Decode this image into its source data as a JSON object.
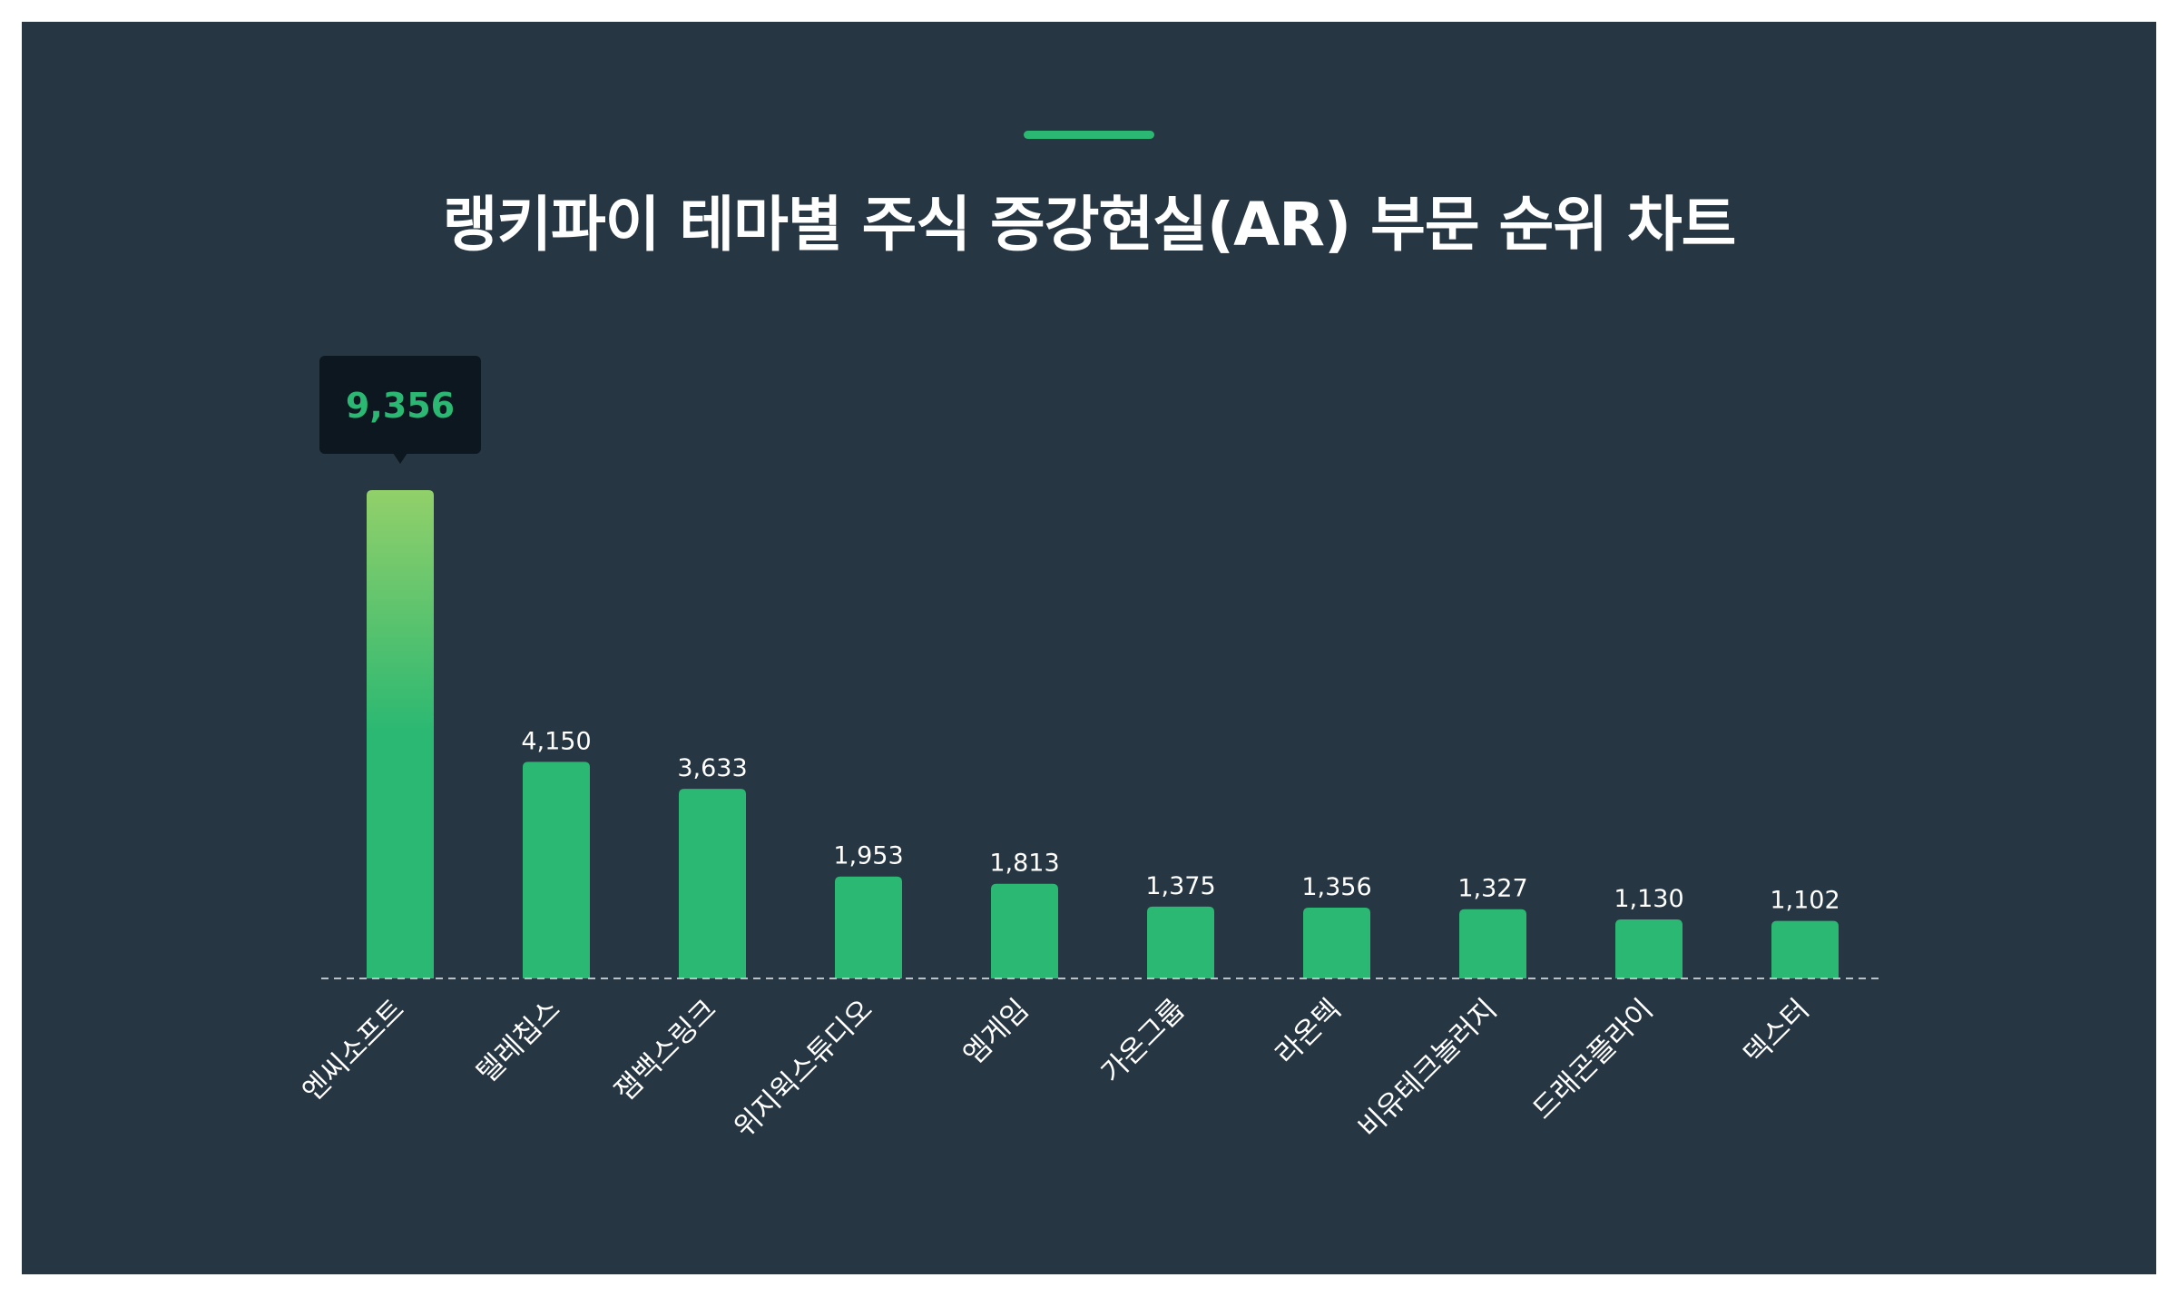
{
  "header": {
    "title": "랭키파이 테마별 주식 증강현실(AR) 부문 순위 차트"
  },
  "colors": {
    "background": "#263642",
    "bar": "#2ab872",
    "bar_top_gradient": "#92d06a",
    "accent": "#2ab872",
    "tooltip_bg": "#0c1720"
  },
  "chart_data": {
    "type": "bar",
    "title": "랭키파이 테마별 주식 증강현실(AR) 부문 순위 차트",
    "categories": [
      "엔씨소프트",
      "텔레칩스",
      "잼백스링크",
      "위지윅스튜디오",
      "엠게임",
      "가온그룹",
      "라온텍",
      "비유테크놀러지",
      "드래곤플라이",
      "덱스터"
    ],
    "values": [
      9356,
      4150,
      3633,
      1953,
      1813,
      1375,
      1356,
      1327,
      1130,
      1102
    ],
    "value_labels": [
      "9,356",
      "4,150",
      "3,633",
      "1,953",
      "1,813",
      "1,375",
      "1,356",
      "1,327",
      "1,130",
      "1,102"
    ],
    "highlight_index": 0,
    "ylim": [
      0,
      9356
    ],
    "grid": false,
    "legend": "none"
  }
}
